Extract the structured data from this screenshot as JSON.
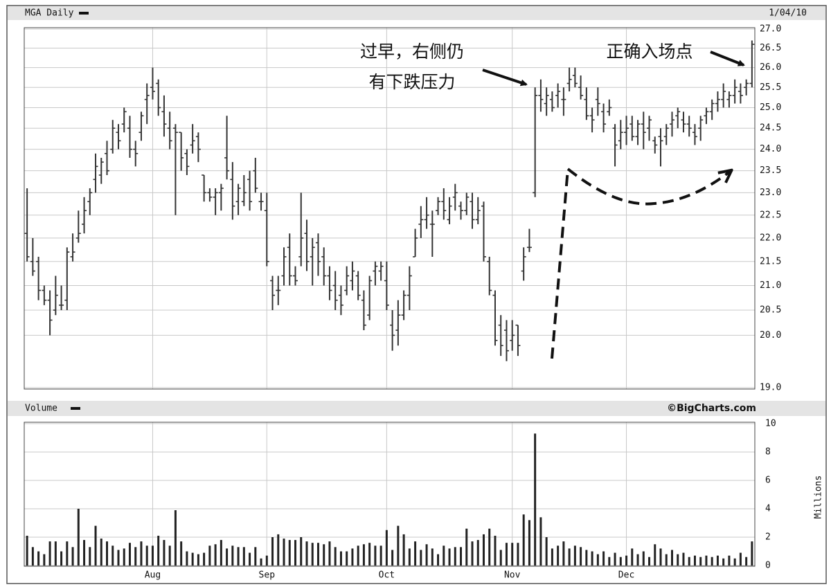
{
  "chart_data": [
    {
      "type": "ohlc",
      "title": "MGA Daily",
      "date": "1/04/10",
      "log_scale": true,
      "grid": true,
      "color": "#333333",
      "ylim": [
        19,
        27
      ],
      "yticks": [
        {
          "value": 19,
          "label": "19.0"
        },
        {
          "value": 20,
          "label": "20.0"
        },
        20.5,
        {
          "value": 21,
          "label": "21.0"
        },
        21.5,
        {
          "value": 22,
          "label": "22.0"
        },
        22.5,
        {
          "value": 23,
          "label": "23.0"
        },
        23.5,
        {
          "value": 24,
          "label": "24.0"
        },
        24.5,
        {
          "value": 25,
          "label": "25.0"
        },
        25.5,
        {
          "value": 26,
          "label": "26.0"
        },
        26.5,
        {
          "value": 27,
          "label": "27.0"
        }
      ],
      "annotations": [
        "过早，右侧仍",
        "有下跌压力",
        "正确入场点"
      ],
      "ohlc": [
        [
          22.1,
          23.1,
          21.5,
          21.6
        ],
        [
          21.5,
          22.0,
          21.2,
          21.3
        ],
        [
          21.5,
          21.6,
          20.7,
          20.9
        ],
        [
          20.9,
          21.0,
          20.6,
          20.7
        ],
        [
          20.7,
          20.9,
          20.0,
          20.3
        ],
        [
          20.5,
          21.2,
          20.4,
          20.8
        ],
        [
          20.6,
          21.0,
          20.5,
          20.6
        ],
        [
          20.7,
          21.8,
          20.5,
          21.7
        ],
        [
          21.6,
          22.1,
          21.5,
          21.7
        ],
        [
          22.0,
          22.6,
          21.9,
          22.1
        ],
        [
          22.3,
          22.9,
          22.1,
          22.6
        ],
        [
          22.8,
          23.1,
          22.5,
          23.0
        ],
        [
          23.3,
          23.9,
          23.0,
          23.6
        ],
        [
          23.4,
          23.8,
          23.2,
          23.7
        ],
        [
          23.9,
          24.2,
          23.4,
          23.5
        ],
        [
          24.0,
          24.7,
          23.9,
          24.5
        ],
        [
          24.4,
          24.6,
          24.0,
          24.2
        ],
        [
          24.6,
          25.0,
          24.4,
          24.9
        ],
        [
          24.5,
          24.8,
          23.8,
          24.0
        ],
        [
          24.0,
          24.2,
          23.6,
          23.9
        ],
        [
          24.4,
          24.9,
          24.2,
          24.8
        ],
        [
          25.2,
          25.6,
          24.6,
          25.3
        ],
        [
          25.5,
          26.0,
          25.2,
          25.4
        ],
        [
          25.6,
          25.7,
          24.8,
          25.0
        ],
        [
          24.9,
          25.3,
          24.3,
          24.6
        ],
        [
          24.5,
          24.9,
          24.0,
          24.2
        ],
        [
          24.5,
          24.6,
          22.5,
          24.4
        ],
        [
          24.4,
          24.4,
          23.5,
          23.8
        ],
        [
          23.9,
          24.0,
          23.4,
          23.6
        ],
        [
          24.1,
          24.6,
          23.9,
          24.2
        ],
        [
          24.3,
          24.4,
          23.7,
          24.0
        ],
        [
          23.4,
          23.4,
          22.8,
          23.0
        ],
        [
          23.0,
          23.1,
          22.8,
          22.9
        ],
        [
          22.9,
          23.1,
          22.5,
          23.0
        ],
        [
          23.0,
          23.2,
          22.6,
          23.1
        ],
        [
          23.8,
          24.8,
          23.3,
          23.5
        ],
        [
          23.3,
          23.7,
          22.4,
          22.7
        ],
        [
          22.8,
          23.2,
          22.5,
          23.1
        ],
        [
          22.8,
          23.4,
          22.7,
          23.0
        ],
        [
          23.3,
          23.5,
          22.6,
          22.8
        ],
        [
          23.5,
          23.8,
          23.0,
          23.1
        ],
        [
          22.8,
          23.0,
          22.6,
          22.8
        ],
        [
          22.6,
          23.0,
          21.4,
          21.5
        ],
        [
          21.1,
          21.2,
          20.5,
          20.8
        ],
        [
          20.9,
          21.2,
          20.6,
          20.9
        ],
        [
          21.2,
          21.8,
          21.0,
          21.6
        ],
        [
          21.8,
          22.1,
          21.0,
          21.2
        ],
        [
          21.2,
          21.4,
          21.0,
          21.1
        ],
        [
          21.6,
          23.0,
          21.4,
          22.0
        ],
        [
          22.1,
          22.4,
          21.3,
          21.5
        ],
        [
          21.6,
          22.0,
          21.0,
          21.8
        ],
        [
          21.9,
          22.1,
          21.2,
          21.5
        ],
        [
          21.6,
          21.8,
          21.0,
          21.2
        ],
        [
          21.2,
          21.4,
          20.7,
          20.9
        ],
        [
          21.0,
          21.3,
          20.5,
          20.7
        ],
        [
          20.8,
          21.0,
          20.4,
          20.6
        ],
        [
          20.9,
          21.4,
          20.8,
          21.2
        ],
        [
          21.1,
          21.5,
          20.9,
          21.3
        ],
        [
          21.2,
          21.3,
          20.7,
          20.8
        ],
        [
          20.7,
          20.9,
          20.1,
          20.2
        ],
        [
          20.4,
          21.2,
          20.3,
          21.1
        ],
        [
          21.3,
          21.5,
          21.0,
          21.4
        ],
        [
          21.3,
          21.5,
          21.1,
          21.4
        ],
        [
          21.1,
          21.5,
          20.5,
          20.6
        ],
        [
          20.2,
          20.5,
          19.7,
          20.0
        ],
        [
          20.1,
          20.7,
          19.8,
          20.4
        ],
        [
          20.4,
          20.9,
          20.3,
          20.8
        ],
        [
          20.8,
          21.4,
          20.5,
          21.2
        ],
        [
          21.6,
          22.2,
          21.6,
          22.0
        ],
        [
          22.3,
          22.7,
          22.0,
          22.4
        ],
        [
          22.4,
          22.9,
          22.2,
          22.5
        ],
        [
          22.3,
          22.6,
          21.6,
          22.3
        ],
        [
          22.6,
          22.9,
          22.5,
          22.8
        ],
        [
          22.8,
          23.1,
          22.4,
          22.6
        ],
        [
          22.4,
          22.9,
          22.3,
          22.7
        ],
        [
          22.9,
          23.2,
          22.6,
          23.0
        ],
        [
          22.7,
          22.8,
          22.4,
          22.6
        ],
        [
          22.6,
          23.0,
          22.5,
          22.9
        ],
        [
          22.8,
          23.0,
          22.2,
          22.4
        ],
        [
          22.4,
          22.9,
          22.3,
          22.6
        ],
        [
          22.7,
          22.8,
          21.5,
          21.6
        ],
        [
          21.5,
          21.6,
          20.8,
          20.9
        ],
        [
          20.8,
          20.9,
          19.8,
          19.9
        ],
        [
          20.2,
          20.4,
          19.6,
          19.8
        ],
        [
          20.1,
          20.3,
          19.5,
          19.7
        ],
        [
          19.9,
          20.3,
          19.7,
          20.0
        ],
        [
          20.2,
          20.2,
          19.6,
          19.8
        ],
        [
          21.3,
          21.8,
          21.1,
          21.6
        ],
        [
          21.8,
          22.2,
          21.7,
          21.8
        ],
        [
          23.0,
          25.5,
          22.9,
          25.3
        ],
        [
          25.3,
          25.7,
          24.9,
          25.2
        ],
        [
          25.1,
          25.5,
          24.8,
          25.3
        ],
        [
          25.2,
          25.4,
          24.9,
          25.0
        ],
        [
          25.3,
          25.6,
          25.0,
          25.4
        ],
        [
          25.2,
          25.5,
          24.8,
          25.2
        ],
        [
          25.6,
          26.0,
          25.4,
          25.7
        ],
        [
          25.8,
          26.0,
          25.5,
          25.6
        ],
        [
          25.5,
          25.8,
          25.2,
          25.3
        ],
        [
          25.2,
          25.5,
          24.7,
          24.8
        ],
        [
          24.8,
          25.0,
          24.4,
          24.7
        ],
        [
          25.2,
          25.5,
          24.8,
          25.1
        ],
        [
          24.9,
          25.1,
          24.4,
          24.6
        ],
        [
          24.9,
          25.2,
          24.8,
          25.0
        ],
        [
          24.5,
          24.6,
          23.6,
          24.1
        ],
        [
          24.2,
          24.7,
          24.0,
          24.4
        ],
        [
          24.4,
          24.8,
          24.1,
          24.5
        ],
        [
          24.6,
          24.8,
          24.2,
          24.3
        ],
        [
          24.3,
          24.7,
          24.1,
          24.6
        ],
        [
          24.6,
          24.9,
          24.0,
          24.4
        ],
        [
          24.5,
          24.8,
          24.2,
          24.7
        ],
        [
          24.2,
          24.3,
          23.9,
          24.1
        ],
        [
          24.3,
          24.5,
          23.6,
          24.2
        ],
        [
          24.3,
          24.6,
          24.1,
          24.5
        ],
        [
          24.6,
          24.9,
          24.3,
          24.7
        ],
        [
          24.8,
          25.0,
          24.5,
          24.9
        ],
        [
          24.7,
          24.9,
          24.4,
          24.6
        ],
        [
          24.6,
          24.8,
          24.3,
          24.5
        ],
        [
          24.4,
          24.6,
          24.1,
          24.3
        ],
        [
          24.5,
          24.8,
          24.2,
          24.7
        ],
        [
          24.8,
          25.0,
          24.6,
          24.9
        ],
        [
          24.9,
          25.2,
          24.7,
          25.1
        ],
        [
          25.1,
          25.4,
          24.9,
          25.2
        ],
        [
          25.2,
          25.6,
          25.0,
          25.4
        ],
        [
          25.2,
          25.4,
          25.0,
          25.3
        ],
        [
          25.3,
          25.7,
          25.1,
          25.5
        ],
        [
          25.4,
          25.6,
          25.1,
          25.3
        ],
        [
          25.5,
          25.7,
          25.3,
          25.6
        ],
        [
          25.6,
          26.7,
          25.5,
          26.6
        ]
      ]
    },
    {
      "type": "bar",
      "title": "Volume",
      "source": "©BigCharts.com",
      "y_label": "Millions",
      "grid": true,
      "color": "#222222",
      "ylim": [
        0,
        10
      ],
      "yticks": [
        0,
        2,
        4,
        6,
        8,
        10
      ],
      "categories": [
        null,
        null,
        null,
        null,
        null,
        null,
        null,
        null,
        null,
        null,
        null,
        null,
        null,
        null,
        null,
        null,
        null,
        null,
        null,
        null,
        null,
        null,
        "Aug",
        null,
        null,
        null,
        null,
        null,
        null,
        null,
        null,
        null,
        null,
        null,
        null,
        null,
        null,
        null,
        null,
        null,
        null,
        null,
        "Sep",
        null,
        null,
        null,
        null,
        null,
        null,
        null,
        null,
        null,
        null,
        null,
        null,
        null,
        null,
        null,
        null,
        null,
        null,
        null,
        null,
        "Oct",
        null,
        null,
        null,
        null,
        null,
        null,
        null,
        null,
        null,
        null,
        null,
        null,
        null,
        null,
        null,
        null,
        null,
        null,
        null,
        null,
        null,
        "Nov",
        null,
        null,
        null,
        null,
        null,
        null,
        null,
        null,
        null,
        null,
        null,
        null,
        null,
        null,
        null,
        null,
        null,
        null,
        null,
        "Dec",
        null,
        null,
        null,
        null,
        null,
        null,
        null,
        null,
        null,
        null,
        null,
        null,
        null,
        null,
        null,
        null,
        null,
        null,
        null,
        null,
        null,
        null
      ],
      "values": [
        2.1,
        1.3,
        1.0,
        0.8,
        1.7,
        1.7,
        1.0,
        1.7,
        1.3,
        4.0,
        1.8,
        1.3,
        2.8,
        1.9,
        1.7,
        1.4,
        1.1,
        1.2,
        1.6,
        1.3,
        1.7,
        1.4,
        1.4,
        2.1,
        1.8,
        1.4,
        3.9,
        1.7,
        1.0,
        0.9,
        0.8,
        0.9,
        1.4,
        1.5,
        1.8,
        1.2,
        1.4,
        1.3,
        1.3,
        0.9,
        1.3,
        0.5,
        0.7,
        2.0,
        2.2,
        1.9,
        1.8,
        1.8,
        2.0,
        1.7,
        1.6,
        1.6,
        1.5,
        1.7,
        1.3,
        1.0,
        1.0,
        1.2,
        1.4,
        1.5,
        1.6,
        1.4,
        1.4,
        2.5,
        1.1,
        2.8,
        2.2,
        1.2,
        1.7,
        1.1,
        1.5,
        1.2,
        0.8,
        1.4,
        1.2,
        1.3,
        1.3,
        2.6,
        1.7,
        1.8,
        2.2,
        2.6,
        2.1,
        1.1,
        1.6,
        1.6,
        1.6,
        3.6,
        3.2,
        9.3,
        3.4,
        2.0,
        1.2,
        1.4,
        1.7,
        1.2,
        1.4,
        1.3,
        1.1,
        1.0,
        0.8,
        1.0,
        0.6,
        0.9,
        0.6,
        0.7,
        1.2,
        0.8,
        1.0,
        0.6,
        1.5,
        1.2,
        0.8,
        1.1,
        0.8,
        0.9,
        0.6,
        0.7,
        0.6,
        0.7,
        0.6,
        0.7,
        0.5,
        0.7,
        0.5,
        0.9,
        0.6,
        1.7
      ]
    }
  ]
}
